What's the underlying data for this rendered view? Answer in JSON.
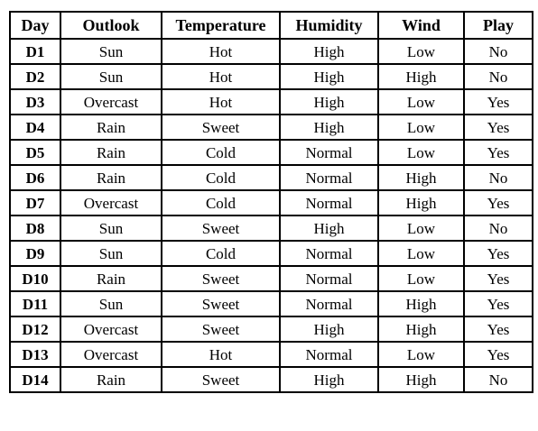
{
  "table": {
    "headers": [
      "Day",
      "Outlook",
      "Temperature",
      "Humidity",
      "Wind",
      "Play"
    ],
    "rows": [
      [
        "D1",
        "Sun",
        "Hot",
        "High",
        "Low",
        "No"
      ],
      [
        "D2",
        "Sun",
        "Hot",
        "High",
        "High",
        "No"
      ],
      [
        "D3",
        "Overcast",
        "Hot",
        "High",
        "Low",
        "Yes"
      ],
      [
        "D4",
        "Rain",
        "Sweet",
        "High",
        "Low",
        "Yes"
      ],
      [
        "D5",
        "Rain",
        "Cold",
        "Normal",
        "Low",
        "Yes"
      ],
      [
        "D6",
        "Rain",
        "Cold",
        "Normal",
        "High",
        "No"
      ],
      [
        "D7",
        "Overcast",
        "Cold",
        "Normal",
        "High",
        "Yes"
      ],
      [
        "D8",
        "Sun",
        "Sweet",
        "High",
        "Low",
        "No"
      ],
      [
        "D9",
        "Sun",
        "Cold",
        "Normal",
        "Low",
        "Yes"
      ],
      [
        "D10",
        "Rain",
        "Sweet",
        "Normal",
        "Low",
        "Yes"
      ],
      [
        "D11",
        "Sun",
        "Sweet",
        "Normal",
        "High",
        "Yes"
      ],
      [
        "D12",
        "Overcast",
        "Sweet",
        "High",
        "High",
        "Yes"
      ],
      [
        "D13",
        "Overcast",
        "Hot",
        "Normal",
        "Low",
        "Yes"
      ],
      [
        "D14",
        "Rain",
        "Sweet",
        "High",
        "High",
        "No"
      ]
    ]
  }
}
